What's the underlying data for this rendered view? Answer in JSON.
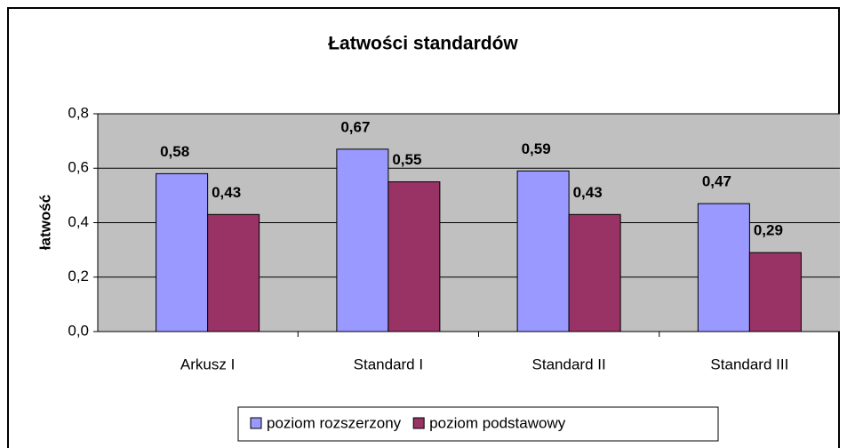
{
  "chart_data": {
    "type": "bar",
    "title": "Łatwości standardów",
    "y_label": "łatwość",
    "categories": [
      "Arkusz I",
      "Standard I",
      "Standard II",
      "Standard III"
    ],
    "series": [
      {
        "name": "poziom rozszerzony",
        "color": "#9999ff",
        "values": [
          0.58,
          0.67,
          0.59,
          0.47
        ],
        "value_labels": [
          "0,58",
          "0,67",
          "0,59",
          "0,47"
        ]
      },
      {
        "name": "poziom podstawowy",
        "color": "#993366",
        "values": [
          0.43,
          0.55,
          0.43,
          0.29
        ],
        "value_labels": [
          "0,43",
          "0,55",
          "0,43",
          "0,29"
        ]
      }
    ],
    "ylim": [
      0,
      0.8
    ],
    "yticks": [
      {
        "value": 0,
        "label": "0,0"
      },
      {
        "value": 0.2,
        "label": "0,2"
      },
      {
        "value": 0.4,
        "label": "0,4"
      },
      {
        "value": 0.6,
        "label": "0,6"
      },
      {
        "value": 0.8,
        "label": "0,8"
      }
    ],
    "grid": true,
    "legend": "bottom"
  }
}
